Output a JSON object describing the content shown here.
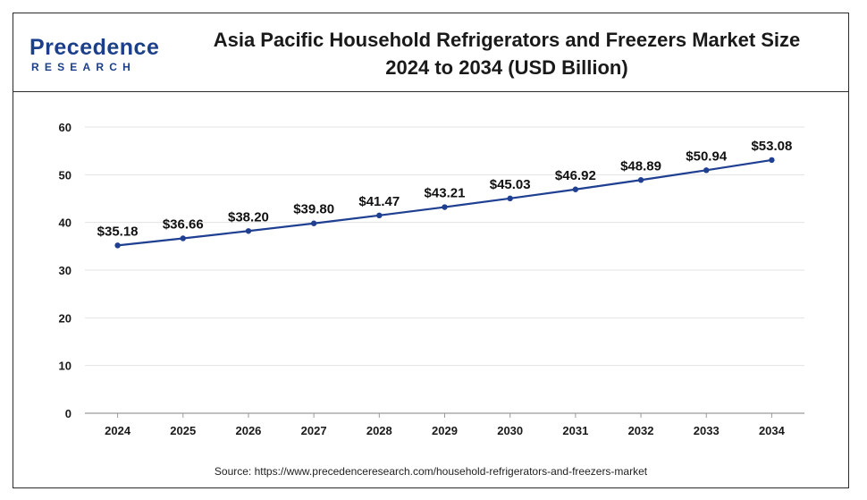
{
  "header": {
    "logo_line1": "Precedence",
    "logo_line2": "RESEARCH",
    "title_line1": "Asia Pacific Household Refrigerators and Freezers Market Size",
    "title_line2": "2024 to 2034 (USD Billion)"
  },
  "source": "Source: https://www.precedenceresearch.com/household-refrigerators-and-freezers-market",
  "colors": {
    "line": "#1f3f91",
    "grid": "#e3e3e3",
    "axis": "#9a9a9a",
    "brand": "#1b3f8b"
  },
  "chart_data": {
    "type": "line",
    "title": "Asia Pacific Household Refrigerators and Freezers Market Size 2024 to 2034 (USD Billion)",
    "categories": [
      "2024",
      "2025",
      "2026",
      "2027",
      "2028",
      "2029",
      "2030",
      "2031",
      "2032",
      "2033",
      "2034"
    ],
    "series": [
      {
        "values": [
          35.18,
          36.66,
          38.2,
          39.8,
          41.47,
          43.21,
          45.03,
          46.92,
          48.89,
          50.94,
          53.08
        ],
        "labels": [
          "$35.18",
          "$36.66",
          "$38.20",
          "$39.80",
          "$41.47",
          "$43.21",
          "$45.03",
          "$46.92",
          "$48.89",
          "$50.94",
          "$53.08"
        ]
      }
    ],
    "ylim": [
      0,
      60
    ],
    "yticks": [
      0,
      10,
      20,
      30,
      40,
      50,
      60
    ],
    "xlabel": "",
    "ylabel": "",
    "grid": true,
    "legend": "none"
  }
}
